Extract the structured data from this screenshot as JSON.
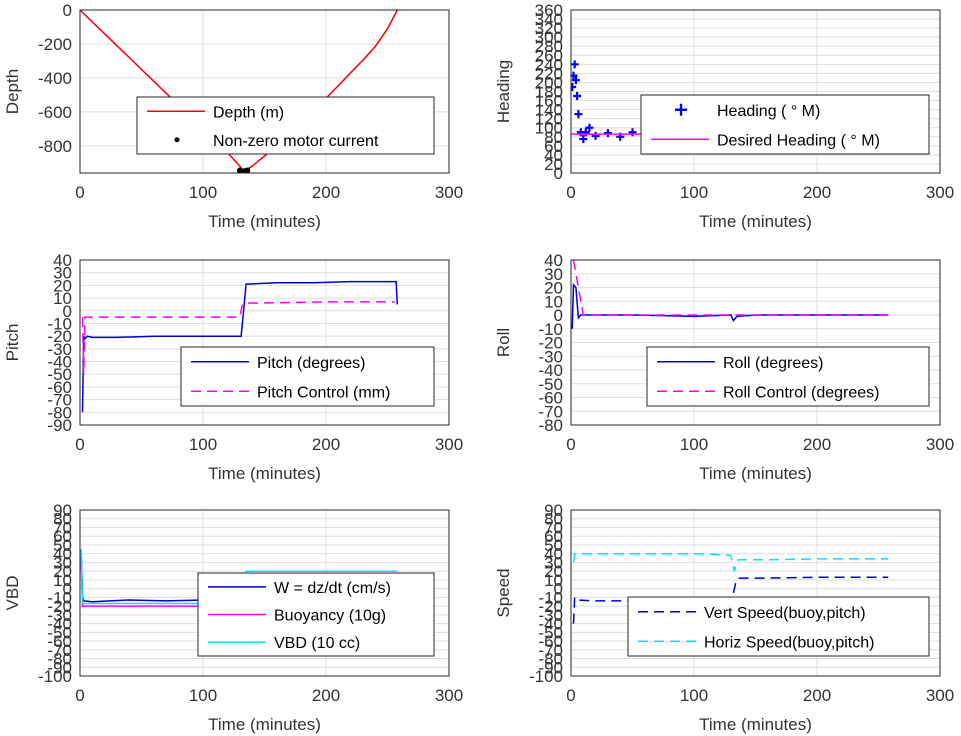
{
  "chart_data": [
    {
      "type": "line",
      "ylabel": "Depth",
      "xlabel": "Time (minutes)",
      "xlim": [
        0,
        300
      ],
      "ylim": [
        -960,
        0
      ],
      "xticks": [
        0,
        100,
        200,
        300
      ],
      "yticks": [
        0,
        -200,
        -400,
        -600,
        -800
      ],
      "xtick_labels": [
        "0",
        "100",
        "200",
        "300"
      ],
      "ytick_labels": [
        "0",
        "-200",
        "-400",
        "-600",
        "-800"
      ],
      "grid": true,
      "legend": "center-right",
      "series": [
        {
          "name": "Depth (m)",
          "style": "solid",
          "color": "#ff0000",
          "x": [
            0,
            10,
            20,
            30,
            40,
            50,
            60,
            70,
            80,
            90,
            100,
            110,
            120,
            130,
            133,
            140,
            150,
            160,
            170,
            180,
            190,
            200,
            210,
            220,
            230,
            240,
            250,
            258
          ],
          "y": [
            0,
            -70,
            -140,
            -210,
            -280,
            -350,
            -420,
            -490,
            -560,
            -630,
            -700,
            -770,
            -840,
            -920,
            -950,
            -920,
            -860,
            -800,
            -735,
            -665,
            -595,
            -520,
            -445,
            -370,
            -295,
            -215,
            -110,
            0
          ]
        },
        {
          "name": "Non-zero motor current",
          "style": "marker",
          "color": "#000000",
          "x": [
            130,
            131,
            132,
            133,
            134,
            135,
            136
          ],
          "y": [
            -945,
            -950,
            -952,
            -952,
            -950,
            -948,
            -945
          ]
        }
      ]
    },
    {
      "type": "line",
      "ylabel": "Heading",
      "xlabel": "Time (minutes)",
      "xlim": [
        0,
        300
      ],
      "ylim": [
        0,
        360
      ],
      "xticks": [
        0,
        100,
        200,
        300
      ],
      "yticks": [
        0,
        20,
        40,
        60,
        80,
        100,
        120,
        140,
        160,
        180,
        200,
        220,
        240,
        260,
        280,
        300,
        320,
        340,
        360
      ],
      "xtick_labels": [
        "0",
        "100",
        "200",
        "300"
      ],
      "ytick_labels": [
        "0",
        "20",
        "40",
        "60",
        "80",
        "100",
        "120",
        "140",
        "160",
        "180",
        "200",
        "220",
        "240",
        "260",
        "280",
        "300",
        "320",
        "340",
        "360"
      ],
      "grid": true,
      "legend": "center-right",
      "series": [
        {
          "name": "Heading ( ° M)",
          "style": "marker",
          "color": "#0000ff",
          "x": [
            1,
            2,
            3,
            4,
            5,
            6,
            8,
            10,
            12,
            15,
            20,
            30,
            40,
            50,
            60,
            70,
            80,
            90,
            100,
            110,
            120,
            130,
            140,
            150,
            155,
            160,
            165,
            170,
            175,
            180,
            190,
            200,
            210,
            220,
            230,
            240,
            250,
            258
          ],
          "y": [
            190,
            215,
            240,
            205,
            170,
            130,
            90,
            75,
            90,
            100,
            82,
            88,
            80,
            90,
            84,
            85,
            92,
            88,
            85,
            90,
            80,
            92,
            82,
            85,
            100,
            108,
            112,
            104,
            98,
            110,
            85,
            92,
            80,
            88,
            84,
            92,
            88,
            90
          ]
        },
        {
          "name": "Desired Heading ( ° M)",
          "style": "solid",
          "color": "#ff00ff",
          "x": [
            0,
            50,
            100,
            150,
            200,
            258
          ],
          "y": [
            86,
            86,
            86,
            87,
            88,
            88
          ]
        }
      ]
    },
    {
      "type": "line",
      "ylabel": "Pitch",
      "xlabel": "Time (minutes)",
      "xlim": [
        0,
        300
      ],
      "ylim": [
        -90,
        40
      ],
      "xticks": [
        0,
        100,
        200,
        300
      ],
      "yticks": [
        40,
        30,
        20,
        10,
        0,
        -10,
        -20,
        -30,
        -40,
        -50,
        -60,
        -70,
        -80,
        -90
      ],
      "xtick_labels": [
        "0",
        "100",
        "200",
        "300"
      ],
      "ytick_labels": [
        "40",
        "30",
        "20",
        "10",
        "0",
        "-10",
        "-20",
        "-30",
        "-40",
        "-50",
        "-60",
        "-70",
        "-80",
        "-90"
      ],
      "grid": true,
      "legend": "lower-right",
      "series": [
        {
          "name": "Pitch (degrees)",
          "style": "solid",
          "color": "#0000cc",
          "x": [
            2,
            3,
            4,
            6,
            10,
            30,
            60,
            90,
            120,
            131,
            133,
            135,
            160,
            190,
            220,
            250,
            257,
            258
          ],
          "y": [
            -80,
            -20,
            -22,
            -20,
            -21,
            -21,
            -20,
            -20,
            -20,
            -20,
            0,
            21,
            22,
            22,
            23,
            23,
            23,
            5
          ]
        },
        {
          "name": "Pitch Control (mm)",
          "style": "dashed",
          "color": "#ff00ff",
          "x": [
            2,
            3,
            4,
            130,
            132,
            134,
            200,
            256
          ],
          "y": [
            -5,
            -50,
            -5,
            -5,
            5,
            6,
            7,
            7
          ]
        }
      ]
    },
    {
      "type": "line",
      "ylabel": "Roll",
      "xlabel": "Time (minutes)",
      "xlim": [
        0,
        300
      ],
      "ylim": [
        -80,
        40
      ],
      "xticks": [
        0,
        100,
        200,
        300
      ],
      "yticks": [
        40,
        30,
        20,
        10,
        0,
        -10,
        -20,
        -30,
        -40,
        -50,
        -60,
        -70,
        -80
      ],
      "xtick_labels": [
        "0",
        "100",
        "200",
        "300"
      ],
      "ytick_labels": [
        "40",
        "30",
        "20",
        "10",
        "0",
        "-10",
        "-20",
        "-30",
        "-40",
        "-50",
        "-60",
        "-70",
        "-80"
      ],
      "grid": true,
      "legend": "lower-right",
      "series": [
        {
          "name": "Roll (degrees)",
          "style": "solid",
          "color": "#0000cc",
          "x": [
            1,
            2,
            4,
            6,
            8,
            10,
            50,
            100,
            130,
            132,
            135,
            150,
            200,
            250,
            258
          ],
          "y": [
            -10,
            22,
            20,
            -2,
            0,
            0,
            0,
            -1,
            0,
            -4,
            -1,
            0,
            0,
            0,
            0
          ]
        },
        {
          "name": "Roll Control (degrees)",
          "style": "dashed",
          "color": "#ff00ff",
          "x": [
            2,
            10,
            20,
            30,
            50,
            60,
            100,
            150,
            200,
            250,
            258
          ],
          "y": [
            40,
            0,
            0,
            0,
            0,
            0,
            0,
            0,
            0,
            0,
            0
          ]
        }
      ]
    },
    {
      "type": "line",
      "ylabel": "VBD",
      "xlabel": "Time (minutes)",
      "xlim": [
        0,
        300
      ],
      "ylim": [
        -100,
        90
      ],
      "xticks": [
        0,
        100,
        200,
        300
      ],
      "yticks": [
        90,
        80,
        70,
        60,
        50,
        40,
        30,
        20,
        10,
        0,
        -10,
        -20,
        -30,
        -40,
        -50,
        -60,
        -70,
        -80,
        -90,
        -100
      ],
      "xtick_labels": [
        "0",
        "100",
        "200",
        "300"
      ],
      "ytick_labels": [
        "90",
        "80",
        "70",
        "60",
        "50",
        "40",
        "30",
        "20",
        "10",
        "0",
        "-10",
        "-20",
        "-30",
        "-40",
        "-50",
        "-60",
        "-70",
        "-80",
        "-90",
        "-100"
      ],
      "grid": true,
      "legend": "lower-right",
      "series": [
        {
          "name": "W = dz/dt (cm/s)",
          "style": "solid",
          "color": "#0000cc",
          "x": [
            1,
            2,
            3,
            10,
            40,
            70,
            100,
            130,
            132,
            135,
            160,
            200,
            258
          ],
          "y": [
            40,
            -10,
            -14,
            -15,
            -13,
            -14,
            -13,
            -14,
            -5,
            12,
            12,
            12,
            12
          ]
        },
        {
          "name": "Buoyancy (10g)",
          "style": "solid",
          "color": "#ff00ff",
          "x": [
            1,
            2,
            3,
            130,
            132,
            135,
            258
          ],
          "y": [
            30,
            -20,
            -20,
            -20,
            0,
            17,
            17
          ]
        },
        {
          "name": "VBD (10 cc)",
          "style": "solid",
          "color": "#00e5ff",
          "x": [
            1,
            2,
            3,
            130,
            132,
            135,
            258
          ],
          "y": [
            45,
            -17,
            -17,
            -17,
            0,
            20,
            20
          ]
        }
      ]
    },
    {
      "type": "line",
      "ylabel": "Speed",
      "xlabel": "Time (minutes)",
      "xlim": [
        0,
        300
      ],
      "ylim": [
        -100,
        90
      ],
      "xticks": [
        0,
        100,
        200,
        300
      ],
      "yticks": [
        90,
        80,
        70,
        60,
        50,
        40,
        30,
        20,
        10,
        0,
        -10,
        -20,
        -30,
        -40,
        -50,
        -60,
        -70,
        -80,
        -90,
        -100
      ],
      "xtick_labels": [
        "0",
        "100",
        "200",
        "300"
      ],
      "ytick_labels": [
        "90",
        "80",
        "70",
        "60",
        "50",
        "40",
        "30",
        "20",
        "10",
        "0",
        "-10",
        "-20",
        "-30",
        "-40",
        "-50",
        "-60",
        "-70",
        "-80",
        "-90",
        "-100"
      ],
      "grid": true,
      "legend": "lower-right",
      "series": [
        {
          "name": "Vert Speed(buoy,pitch)",
          "style": "dashed",
          "color": "#0000cc",
          "x": [
            2,
            3,
            5,
            20,
            60,
            100,
            130,
            132,
            134,
            136,
            160,
            200,
            258
          ],
          "y": [
            -40,
            -10,
            -13,
            -14,
            -14,
            -14,
            -14,
            -5,
            7,
            12,
            12,
            13,
            13
          ]
        },
        {
          "name": "Horiz Speed(buoy,pitch)",
          "style": "dashed",
          "color": "#00e5ff",
          "x": [
            2,
            3,
            5,
            30,
            70,
            110,
            130,
            132,
            133,
            134,
            136,
            160,
            200,
            258
          ],
          "y": [
            30,
            40,
            40,
            40,
            40,
            40,
            38,
            25,
            20,
            27,
            33,
            33,
            34,
            34
          ]
        }
      ]
    }
  ]
}
